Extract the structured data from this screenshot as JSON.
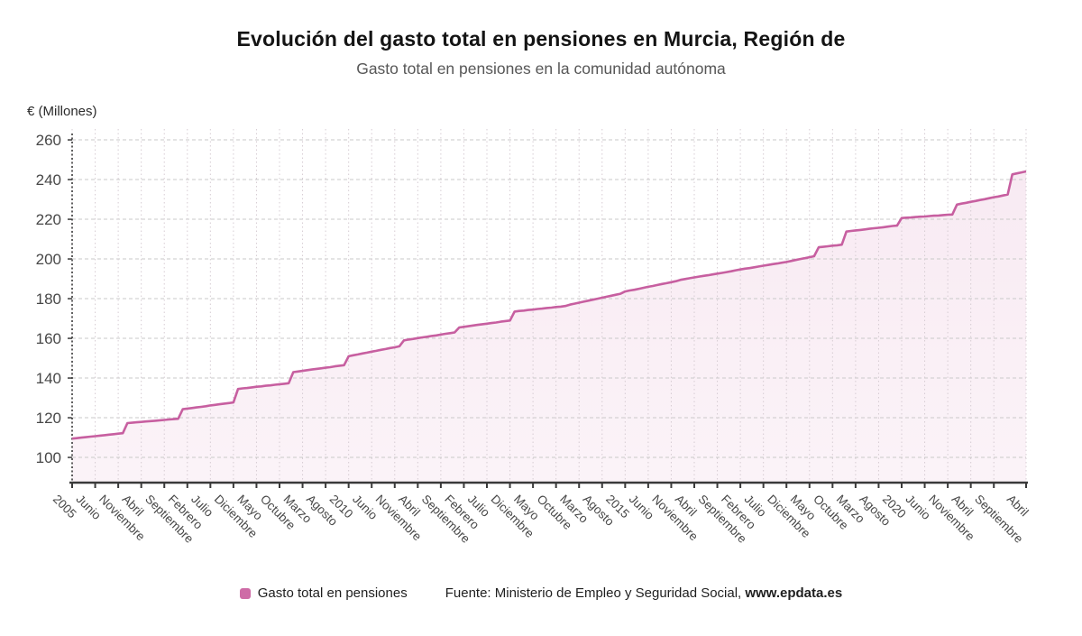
{
  "header": {
    "title": "Evolución del gasto total en pensiones en Murcia, Región de",
    "subtitle": "Gasto total en pensiones en la comunidad autónoma"
  },
  "legend": {
    "label": "Gasto total en pensiones"
  },
  "source": {
    "prefix": "Fuente: Ministerio de Empleo y Seguridad Social, ",
    "site": "www.epdata.es"
  },
  "colors": {
    "accent": "#ce6ba6",
    "line": "#c75fa0",
    "area_fill_top": "rgba(206,107,166,0.14)",
    "area_fill_bottom": "rgba(206,107,166,0.08)",
    "grid_horizontal": "#c9c9c9",
    "grid_vertical": "#d6ccd3",
    "axis": "#3a3a3a",
    "tick_label": "#474747"
  },
  "chart_data": {
    "type": "area",
    "title": "Evolución del gasto total en pensiones en Murcia, Región de",
    "subtitle": "Gasto total en pensiones en la comunidad autónoma",
    "ylabel": "€ (Millones)",
    "x_interval": "monthly",
    "x_range": {
      "from": "2005",
      "to": "Abril 2022"
    },
    "ylim": [
      87,
      264
    ],
    "yticks": [
      100,
      120,
      140,
      160,
      180,
      200,
      220,
      240,
      260
    ],
    "grid": true,
    "legend_position": "bottom",
    "xticks": [
      {
        "index": 0,
        "label": "2005"
      },
      {
        "index": 5,
        "label": "Junio"
      },
      {
        "index": 10,
        "label": "Noviembre"
      },
      {
        "index": 15,
        "label": "Abril"
      },
      {
        "index": 20,
        "label": "Septiembre"
      },
      {
        "index": 25,
        "label": "Febrero"
      },
      {
        "index": 30,
        "label": "Julio"
      },
      {
        "index": 35,
        "label": "Diciembre"
      },
      {
        "index": 40,
        "label": "Mayo"
      },
      {
        "index": 45,
        "label": "Octubre"
      },
      {
        "index": 50,
        "label": "Marzo"
      },
      {
        "index": 55,
        "label": "Agosto"
      },
      {
        "index": 60,
        "label": "2010"
      },
      {
        "index": 65,
        "label": "Junio"
      },
      {
        "index": 70,
        "label": "Noviembre"
      },
      {
        "index": 75,
        "label": "Abril"
      },
      {
        "index": 80,
        "label": "Septiembre"
      },
      {
        "index": 85,
        "label": "Febrero"
      },
      {
        "index": 90,
        "label": "Julio"
      },
      {
        "index": 95,
        "label": "Diciembre"
      },
      {
        "index": 100,
        "label": "Mayo"
      },
      {
        "index": 105,
        "label": "Octubre"
      },
      {
        "index": 110,
        "label": "Marzo"
      },
      {
        "index": 115,
        "label": "Agosto"
      },
      {
        "index": 120,
        "label": "2015"
      },
      {
        "index": 125,
        "label": "Junio"
      },
      {
        "index": 130,
        "label": "Noviembre"
      },
      {
        "index": 135,
        "label": "Abril"
      },
      {
        "index": 140,
        "label": "Septiembre"
      },
      {
        "index": 145,
        "label": "Febrero"
      },
      {
        "index": 150,
        "label": "Julio"
      },
      {
        "index": 155,
        "label": "Diciembre"
      },
      {
        "index": 160,
        "label": "Mayo"
      },
      {
        "index": 165,
        "label": "Octubre"
      },
      {
        "index": 170,
        "label": "Marzo"
      },
      {
        "index": 175,
        "label": "Agosto"
      },
      {
        "index": 180,
        "label": "2020"
      },
      {
        "index": 185,
        "label": "Junio"
      },
      {
        "index": 190,
        "label": "Noviembre"
      },
      {
        "index": 195,
        "label": "Abril"
      },
      {
        "index": 200,
        "label": "Septiembre"
      },
      {
        "index": 207,
        "label": "Abril"
      }
    ],
    "series": [
      {
        "name": "Gasto total en pensiones",
        "color": "#ce6ba6",
        "values": [
          109.5,
          109.7,
          110,
          110.2,
          110.5,
          110.7,
          111,
          111.2,
          111.5,
          111.7,
          112,
          112.2,
          117.3,
          117.5,
          117.7,
          117.9,
          118.1,
          118.3,
          118.5,
          118.7,
          118.9,
          119.1,
          119.3,
          119.5,
          124.3,
          124.6,
          124.9,
          125.2,
          125.5,
          125.8,
          126.2,
          126.5,
          126.8,
          127.1,
          127.4,
          127.7,
          134.5,
          134.8,
          135,
          135.3,
          135.6,
          135.8,
          136.1,
          136.3,
          136.6,
          136.9,
          137.1,
          137.4,
          143,
          143.3,
          143.6,
          144,
          144.3,
          144.6,
          144.9,
          145.2,
          145.5,
          145.9,
          146.2,
          146.5,
          151,
          151.5,
          151.9,
          152.4,
          152.8,
          153.3,
          153.7,
          154.2,
          154.6,
          155.1,
          155.5,
          156,
          159,
          159.4,
          159.7,
          160.1,
          160.5,
          160.8,
          161.2,
          161.5,
          161.9,
          162.3,
          162.6,
          163,
          165.5,
          165.8,
          166.1,
          166.5,
          166.8,
          167.1,
          167.4,
          167.7,
          168,
          168.4,
          168.7,
          169,
          173.5,
          173.8,
          174,
          174.3,
          174.5,
          174.8,
          175,
          175.3,
          175.5,
          175.8,
          176,
          176.3,
          177,
          177.5,
          178,
          178.5,
          179,
          179.5,
          180,
          180.5,
          181,
          181.5,
          182,
          182.5,
          183.6,
          184.1,
          184.5,
          185,
          185.5,
          186,
          186.4,
          186.9,
          187.4,
          187.8,
          188.3,
          188.8,
          189.5,
          189.9,
          190.3,
          190.7,
          191.1,
          191.5,
          191.8,
          192.2,
          192.6,
          193,
          193.4,
          193.8,
          194.3,
          194.7,
          195.1,
          195.4,
          195.8,
          196.2,
          196.6,
          197,
          197.4,
          197.7,
          198.1,
          198.5,
          199,
          199.5,
          200,
          200.4,
          200.9,
          201.4,
          205.9,
          206.1,
          206.4,
          206.7,
          206.9,
          207.2,
          213.8,
          214.1,
          214.4,
          214.6,
          214.9,
          215.2,
          215.5,
          215.7,
          216,
          216.3,
          216.6,
          216.8,
          220.6,
          220.8,
          220.9,
          221.1,
          221.3,
          221.4,
          221.6,
          221.8,
          221.9,
          222.1,
          222.3,
          222.4,
          227.4,
          227.9,
          228.3,
          228.8,
          229.2,
          229.7,
          230.1,
          230.6,
          231.1,
          231.5,
          232,
          232.5,
          242.6,
          243.1,
          243.6,
          244.1
        ]
      }
    ]
  }
}
